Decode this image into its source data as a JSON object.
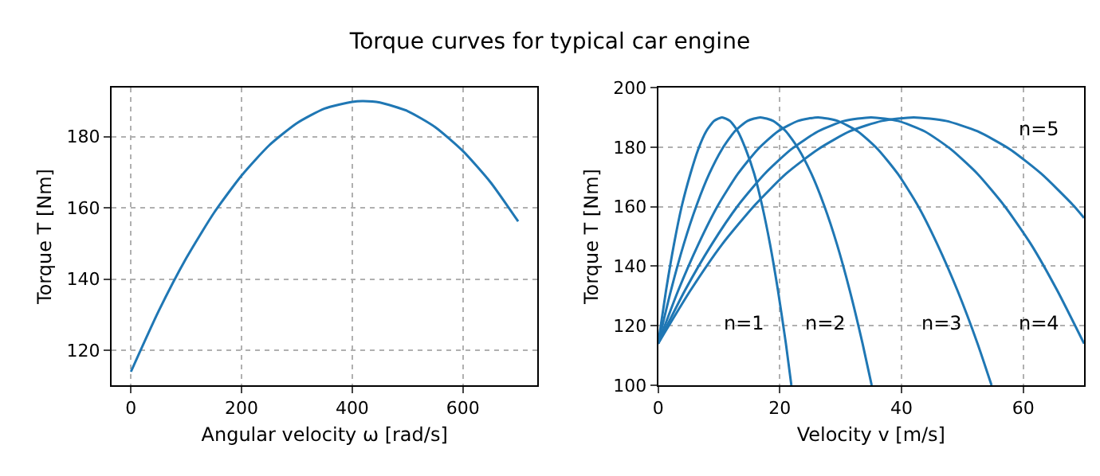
{
  "chart_data": [
    {
      "type": "line",
      "title": "Torque curves for typical car engine",
      "xlabel": "Angular velocity ω [rad/s]",
      "ylabel": "Torque T [Nm]",
      "series": [
        {
          "color": "#1f77b4",
          "x": [
            0,
            50,
            100,
            150,
            200,
            250,
            300,
            350,
            400,
            420,
            450,
            500,
            550,
            600,
            650,
            700
          ],
          "values": [
            114,
            131.0,
            145.9,
            158.6,
            169.1,
            177.6,
            183.8,
            187.9,
            189.8,
            190,
            189.6,
            187.2,
            182.7,
            176.0,
            167.2,
            156.2
          ]
        }
      ],
      "xlim": [
        -35,
        735
      ],
      "ylim": [
        110.2,
        193.8
      ],
      "xticks": [
        0,
        200,
        400,
        600
      ],
      "yticks": [
        120,
        140,
        160,
        180
      ],
      "grid": true,
      "line_style": "solid",
      "marker": "none"
    },
    {
      "type": "line",
      "xlabel": "Velocity v [m/s]",
      "ylabel": "Torque T [Nm]",
      "series": [
        {
          "color": "#1f77b4",
          "x": [
            0,
            1.3,
            2.6,
            3.9,
            5.3,
            6.6,
            7.9,
            9.2,
            10.5,
            11.8,
            13.1,
            14.4,
            15.8,
            17.1,
            18.4,
            19.7,
            21,
            21.9
          ],
          "values": [
            114,
            131.8,
            147.3,
            160.3,
            171,
            179.3,
            185.3,
            188.8,
            190,
            188.8,
            185.3,
            179.3,
            171,
            160.3,
            147.3,
            131.8,
            114,
            100
          ]
        },
        {
          "color": "#1f77b4",
          "x": [
            0,
            2.1,
            4.2,
            6.3,
            8.4,
            10.5,
            12.6,
            14.7,
            16.8,
            18.9,
            21,
            23.1,
            25.2,
            27.3,
            29.4,
            31.5,
            33.6,
            35.1
          ],
          "values": [
            114,
            131.8,
            147.3,
            160.3,
            171,
            179.3,
            185.3,
            188.8,
            190,
            188.8,
            185.3,
            179.3,
            171,
            160.3,
            147.3,
            131.8,
            114,
            100
          ]
        },
        {
          "color": "#1f77b4",
          "x": [
            0,
            3.3,
            6.6,
            9.8,
            13.1,
            16.4,
            19.7,
            23.0,
            26.3,
            29.5,
            32.8,
            36.1,
            39.4,
            42.7,
            45.9,
            49.2,
            52.5,
            54.8
          ],
          "values": [
            114,
            131.8,
            147.3,
            160.3,
            171,
            179.3,
            185.3,
            188.8,
            190,
            188.8,
            185.3,
            179.3,
            171,
            160.3,
            147.3,
            131.8,
            114,
            100
          ]
        },
        {
          "color": "#1f77b4",
          "x": [
            0,
            4.4,
            8.8,
            13.1,
            17.5,
            21.9,
            26.3,
            30.6,
            35,
            39.4,
            43.8,
            48.1,
            52.5,
            56.9,
            61.3,
            65.6,
            70
          ],
          "values": [
            114,
            131.8,
            147.3,
            160.3,
            171,
            179.3,
            185.3,
            188.8,
            190,
            188.8,
            185.3,
            179.3,
            171,
            160.3,
            147.3,
            131.8,
            114
          ]
        },
        {
          "color": "#1f77b4",
          "x": [
            0,
            5.3,
            10.5,
            15.8,
            21,
            26.3,
            31.5,
            36.8,
            42,
            47.3,
            52.5,
            57.8,
            63,
            68.3,
            70
          ],
          "values": [
            114,
            131.8,
            147.3,
            160.3,
            171,
            179.3,
            185.3,
            188.8,
            190,
            188.8,
            185.3,
            179.3,
            171,
            160.3,
            156.2
          ]
        }
      ],
      "annotations": [
        "n=1",
        "n=2",
        "n=3",
        "n=4",
        "n=5"
      ],
      "xlim": [
        0,
        70
      ],
      "ylim": [
        100,
        200
      ],
      "xticks": [
        0,
        20,
        40,
        60
      ],
      "yticks": [
        100,
        120,
        140,
        160,
        180,
        200
      ],
      "grid": true,
      "line_style": "solid",
      "marker": "none"
    }
  ]
}
